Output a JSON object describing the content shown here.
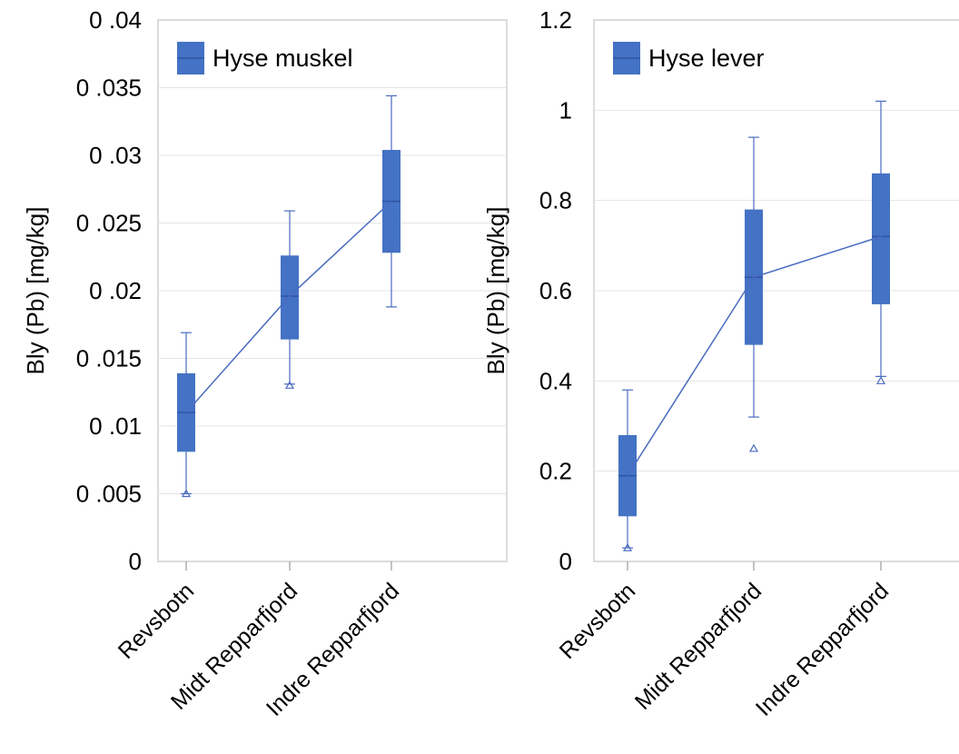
{
  "chart_data": [
    {
      "type": "box",
      "ylabel": "Bly (Pb) [mg/kg]",
      "ylim": [
        0,
        0.04
      ],
      "yticks": [
        0,
        0.005,
        0.01,
        0.015,
        0.02,
        0.025,
        0.03,
        0.035,
        0.04
      ],
      "ytick_labels": [
        "0",
        "0 .005",
        "0 .01",
        "0 .015",
        "0 .02",
        "0 .025",
        "0 .03",
        "0 .035",
        "0 .04"
      ],
      "categories": [
        "Revsbotn",
        "Midt Repparfjord",
        "Indre Repparfjord"
      ],
      "legend": "Hyse muskel",
      "legend_position": "top-left",
      "grid": "horizontal",
      "series": [
        {
          "name": "Hyse muskel",
          "color": "#4472c4",
          "boxes": [
            {
              "whisker_low": 0.005,
              "q1": 0.0081,
              "median": 0.011,
              "q3": 0.0139,
              "whisker_high": 0.0169
            },
            {
              "whisker_low": 0.0131,
              "q1": 0.0164,
              "median": 0.0196,
              "q3": 0.0226,
              "whisker_high": 0.0259
            },
            {
              "whisker_low": 0.0188,
              "q1": 0.0228,
              "median": 0.0266,
              "q3": 0.0304,
              "whisker_high": 0.0344
            }
          ],
          "outliers": [
            [
              0.005
            ],
            [
              0.013
            ],
            [
              0.0231
            ]
          ],
          "line": [
            0.011,
            0.0196,
            0.0266
          ]
        }
      ]
    },
    {
      "type": "box",
      "ylabel": "Bly (Pb) [mg/kg]",
      "ylim": [
        0,
        1.2
      ],
      "yticks": [
        0,
        0.2,
        0.4,
        0.6,
        0.8,
        1.0,
        1.2
      ],
      "ytick_labels": [
        "0",
        "0.2",
        "0.4",
        "0.6",
        "0.8",
        "1",
        "1.2"
      ],
      "categories": [
        "Revsbotn",
        "Midt Repparfjord",
        "Indre Repparfjord"
      ],
      "legend": "Hyse lever",
      "legend_position": "top-left",
      "grid": "horizontal",
      "series": [
        {
          "name": "Hyse lever",
          "color": "#4472c4",
          "boxes": [
            {
              "whisker_low": 0.03,
              "q1": 0.1,
              "median": 0.19,
              "q3": 0.28,
              "whisker_high": 0.38
            },
            {
              "whisker_low": 0.32,
              "q1": 0.48,
              "median": 0.63,
              "q3": 0.78,
              "whisker_high": 0.94
            },
            {
              "whisker_low": 0.41,
              "q1": 0.57,
              "median": 0.72,
              "q3": 0.86,
              "whisker_high": 1.02
            }
          ],
          "outliers": [
            [
              0.03
            ],
            [
              0.25
            ],
            [
              0.4
            ]
          ],
          "line": [
            0.19,
            0.63,
            0.72
          ]
        }
      ]
    }
  ]
}
